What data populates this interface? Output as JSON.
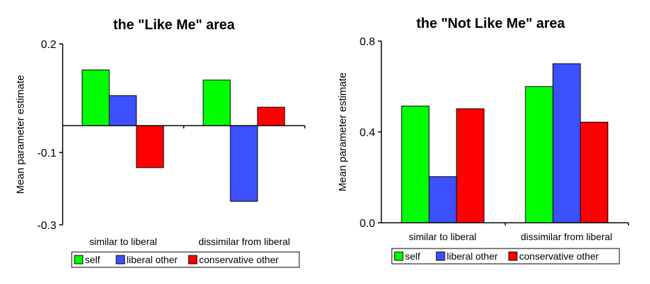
{
  "chart_data": [
    {
      "type": "bar",
      "title": "the \"Like Me\" area",
      "ylabel": "Mean parameter estimate",
      "xlabel": "",
      "categories": [
        "similar to liberal",
        "dissimilar from liberal"
      ],
      "yticks": [
        "0.2",
        "-0.1",
        "-0.3"
      ],
      "ytick_values": [
        0.2,
        -0.1,
        -0.3
      ],
      "ylim": [
        -0.3,
        0.2
      ],
      "baseline": -0.026,
      "series": [
        {
          "name": "self",
          "color": "#00ff00",
          "values": [
            0.128,
            0.1
          ]
        },
        {
          "name": "liberal other",
          "color": "#3c50ff",
          "values": [
            0.057,
            -0.235
          ]
        },
        {
          "name": "conservative other",
          "color": "#ff0000",
          "values": [
            -0.142,
            0.025
          ]
        }
      ],
      "legend": "bottom",
      "grid": false
    },
    {
      "type": "bar",
      "title": "the \"Not Like Me\" area",
      "ylabel": "Mean parameter estimate",
      "xlabel": "",
      "categories": [
        "similar to liberal",
        "dissimilar from liberal"
      ],
      "yticks": [
        "0.8",
        "0.4",
        "0.0"
      ],
      "ytick_values": [
        0.8,
        0.4,
        0.0
      ],
      "ylim": [
        0.0,
        0.8
      ],
      "baseline": 0.0,
      "series": [
        {
          "name": "self",
          "color": "#00ff00",
          "values": [
            0.514,
            0.6
          ]
        },
        {
          "name": "liberal other",
          "color": "#3c50ff",
          "values": [
            0.203,
            0.7
          ]
        },
        {
          "name": "conservative other",
          "color": "#ff0000",
          "values": [
            0.502,
            0.443
          ]
        }
      ],
      "legend": "bottom",
      "grid": false
    }
  ]
}
